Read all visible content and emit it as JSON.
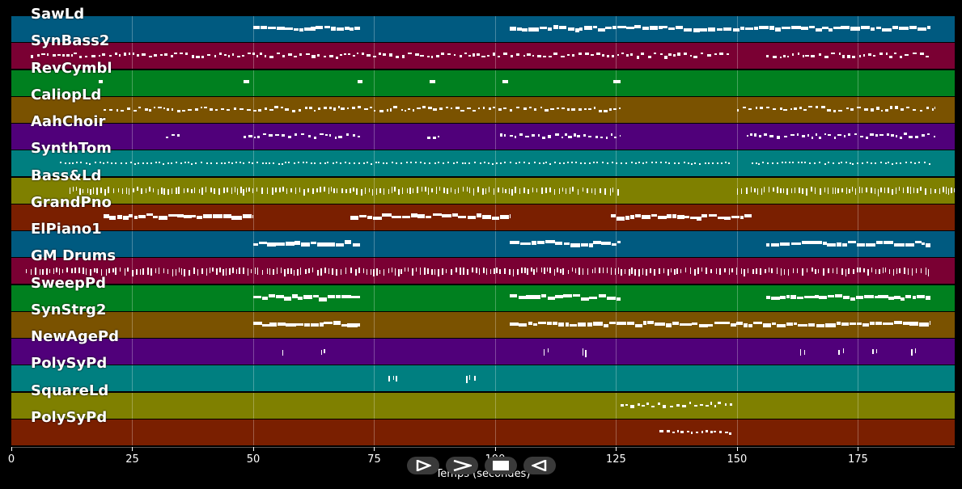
{
  "chart_data": {
    "type": "piano-roll",
    "xlabel": "Temps (secondes)",
    "xlim": [
      0,
      195
    ],
    "xticks": [
      0,
      25,
      50,
      75,
      100,
      125,
      150,
      175
    ],
    "grid": true,
    "tracks": [
      {
        "name": "SawLd",
        "color": "#005a80",
        "segments": [
          [
            50,
            72
          ],
          [
            103,
            190
          ]
        ],
        "style": "dense"
      },
      {
        "name": "SynBass2",
        "color": "#7a0033",
        "segments": [
          [
            4,
            149
          ],
          [
            156,
            190
          ]
        ],
        "style": "small"
      },
      {
        "name": "RevCymbl",
        "color": "#00801f",
        "segments": [
          [
            18,
            18.8
          ],
          [
            48,
            49.2
          ],
          [
            71.5,
            72.5
          ],
          [
            86.5,
            87.7
          ],
          [
            101.5,
            102.7
          ],
          [
            124.5,
            126
          ]
        ],
        "style": "blocks"
      },
      {
        "name": "CaliopLd",
        "color": "#7a5200",
        "segments": [
          [
            19,
            126
          ],
          [
            150,
            191
          ]
        ],
        "style": "small"
      },
      {
        "name": "AahChoir",
        "color": "#50007a",
        "segments": [
          [
            32,
            35
          ],
          [
            48,
            72
          ],
          [
            86,
            88.5
          ],
          [
            101,
            126
          ],
          [
            152,
            191
          ]
        ],
        "style": "small"
      },
      {
        "name": "SynthTom",
        "color": "#007f80",
        "segments": [
          [
            10,
            149
          ],
          [
            153,
            190
          ]
        ],
        "style": "dots"
      },
      {
        "name": "Bass&Ld",
        "color": "#7f8000",
        "segments": [
          [
            12,
            126
          ],
          [
            150,
            195
          ]
        ],
        "style": "ticks"
      },
      {
        "name": "GrandPno",
        "color": "#7a1f00",
        "segments": [
          [
            19,
            50
          ],
          [
            70,
            103
          ],
          [
            124,
            153
          ]
        ],
        "style": "dense"
      },
      {
        "name": "ElPiano1",
        "color": "#005a80",
        "segments": [
          [
            50,
            72
          ],
          [
            103,
            126
          ],
          [
            156,
            190
          ]
        ],
        "style": "dense"
      },
      {
        "name": "GM Drums",
        "color": "#7a0033",
        "segments": [
          [
            3,
            190
          ]
        ],
        "style": "ticks"
      },
      {
        "name": "SweepPd",
        "color": "#00801f",
        "segments": [
          [
            50,
            72
          ],
          [
            103,
            126
          ],
          [
            156,
            190
          ]
        ],
        "style": "dense"
      },
      {
        "name": "SynStrg2",
        "color": "#7a5200",
        "segments": [
          [
            50,
            72
          ],
          [
            103,
            190
          ]
        ],
        "style": "dense"
      },
      {
        "name": "NewAgePd",
        "color": "#50007a",
        "segments": [
          [
            56,
            57
          ],
          [
            64,
            65
          ],
          [
            110,
            111
          ],
          [
            118,
            119
          ],
          [
            163,
            164
          ],
          [
            171,
            172
          ],
          [
            178,
            179
          ],
          [
            186,
            187
          ]
        ],
        "style": "ticks"
      },
      {
        "name": "PolySyPd",
        "color": "#007f80",
        "segments": [
          [
            78,
            80
          ],
          [
            94,
            96
          ]
        ],
        "style": "ticks"
      },
      {
        "name": "SquareLd",
        "color": "#7f8000",
        "segments": [
          [
            126,
            149
          ]
        ],
        "style": "small"
      },
      {
        "name": "PolySyPd",
        "color": "#7a1f00",
        "segments": [
          [
            134,
            149
          ]
        ],
        "style": "small"
      }
    ]
  },
  "controls": {
    "play_icon": "play-outline-icon",
    "forward_icon": "chevron-right-icon",
    "stop_icon": "stop-icon",
    "rewind_icon": "play-reverse-icon"
  }
}
